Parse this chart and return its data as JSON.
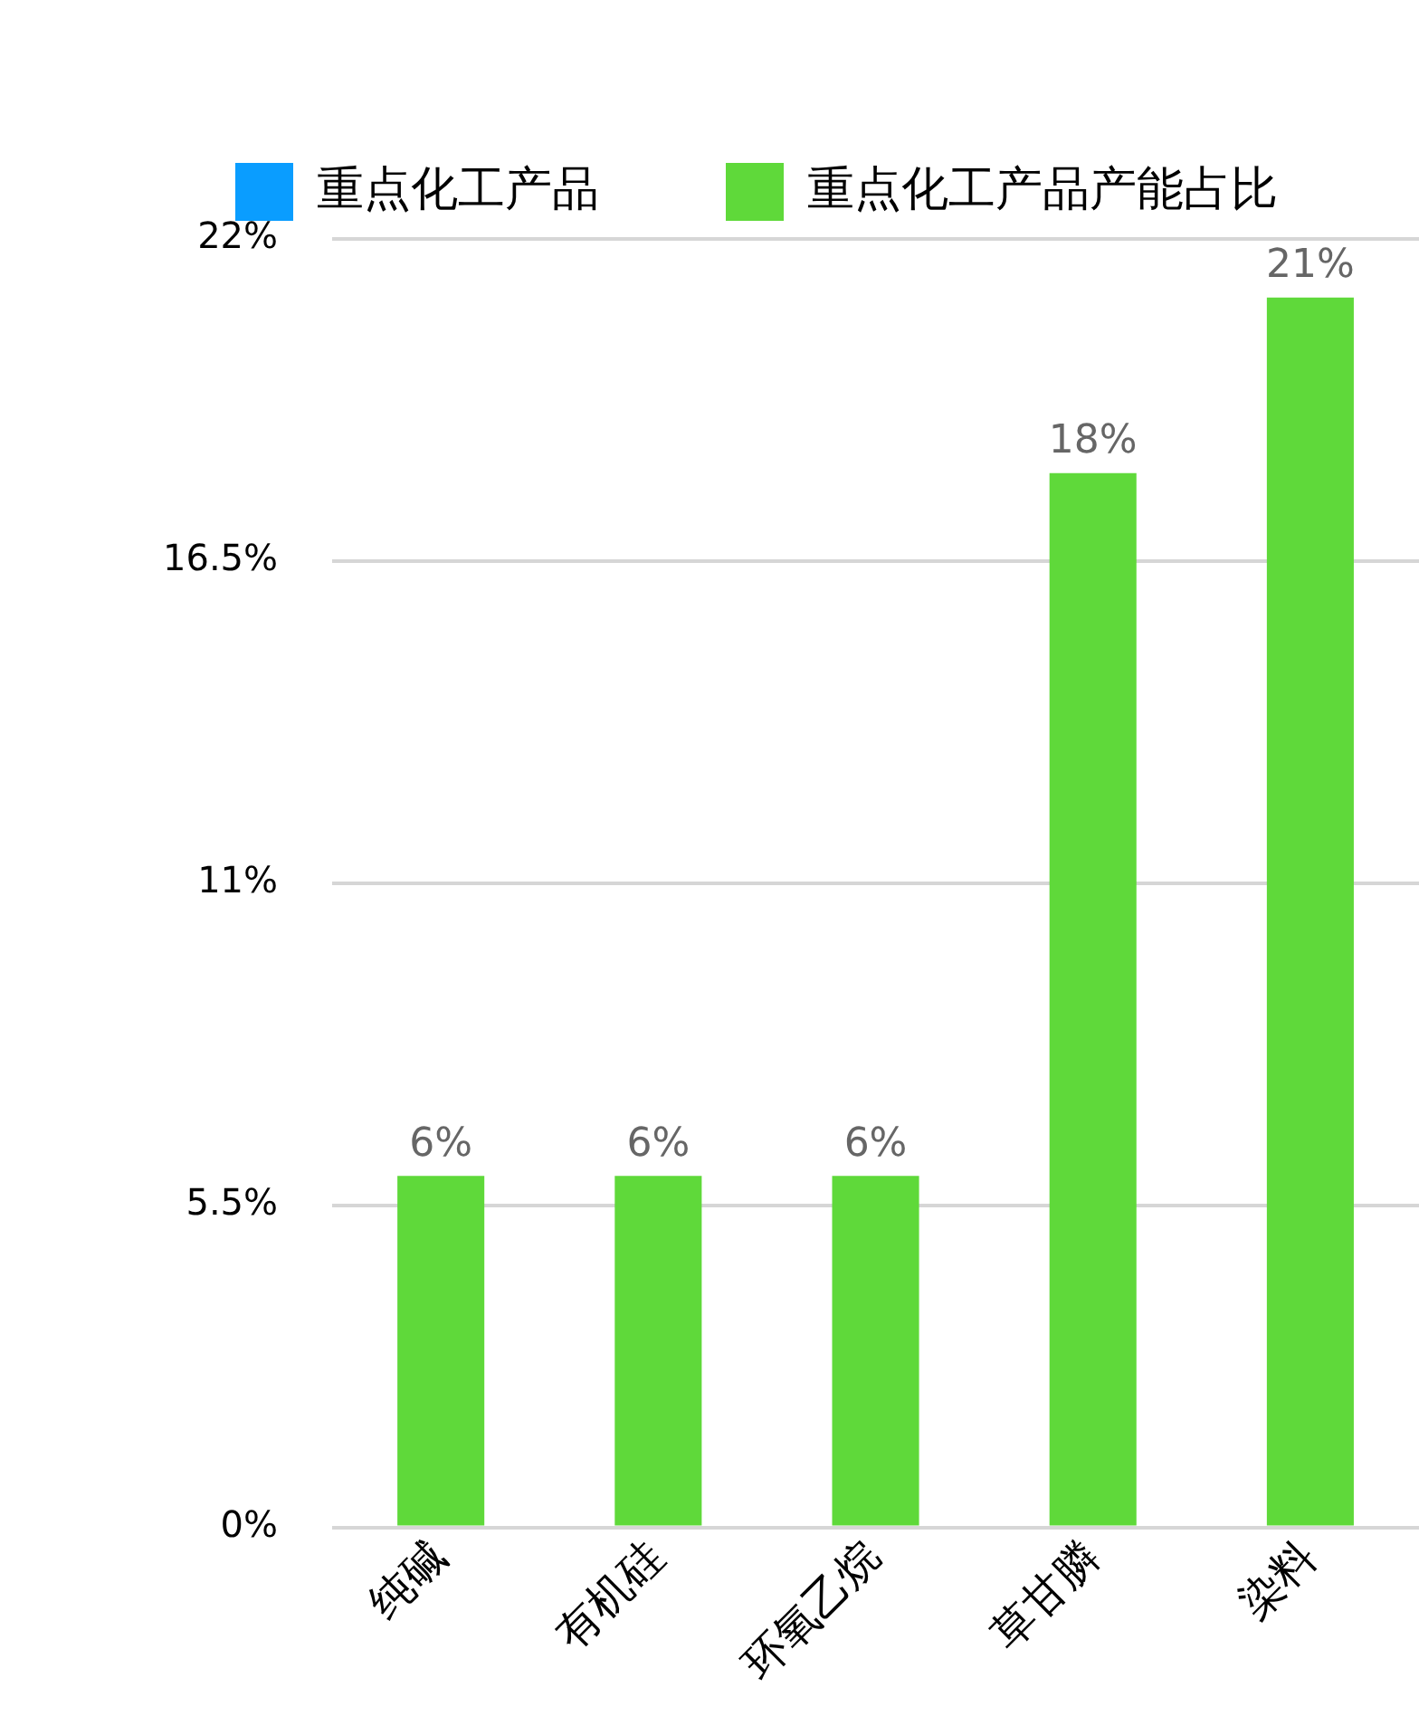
{
  "chart_data": {
    "type": "bar",
    "categories": [
      "纯碱",
      "有机硅",
      "环氧乙烷",
      "草甘膦",
      "染料"
    ],
    "series": [
      {
        "name": "重点化工产品",
        "color": "#0a9dff",
        "values": [
          null,
          null,
          null,
          null,
          null
        ]
      },
      {
        "name": "重点化工产品产能占比",
        "color": "#5fd93a",
        "values": [
          6,
          6,
          6,
          18,
          21
        ],
        "value_labels": [
          "6%",
          "6%",
          "6%",
          "18%",
          "21%"
        ]
      }
    ],
    "ylim": [
      0,
      22
    ],
    "yticks": [
      {
        "value": 0,
        "label": "0%"
      },
      {
        "value": 5.5,
        "label": "5.5%"
      },
      {
        "value": 11,
        "label": "11%"
      },
      {
        "value": 16.5,
        "label": "16.5%"
      },
      {
        "value": 22,
        "label": "22%"
      }
    ],
    "grid": "y",
    "legend": "top left"
  }
}
